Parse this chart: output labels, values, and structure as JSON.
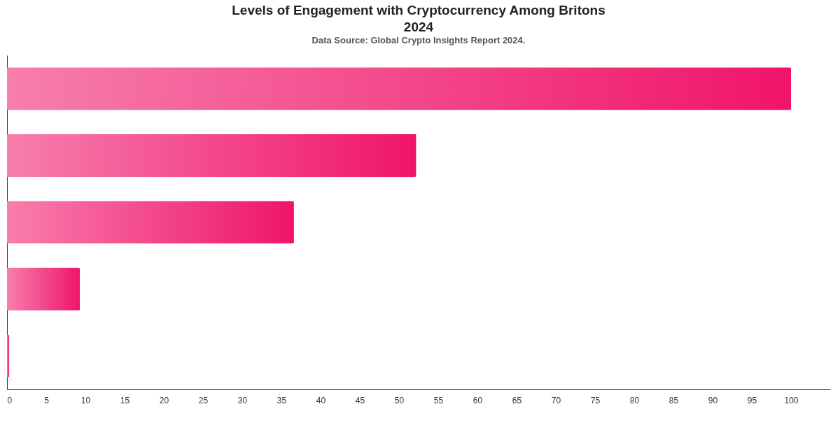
{
  "chart_data": {
    "type": "bar",
    "orientation": "horizontal",
    "title": "Levels of Engagement with Cryptocurrency Among Britons\n2024",
    "annotations": [
      "Data Source: Global Crypto Insights Report 2024."
    ],
    "categories": [
      null,
      null,
      null,
      null,
      null
    ],
    "values": [
      100,
      52.2,
      36.6,
      9.3,
      0.3
    ],
    "color": "#f0146a",
    "xlim": [
      0,
      105
    ],
    "xticks": [
      0,
      5,
      10,
      15,
      20,
      25,
      30,
      35,
      40,
      45,
      50,
      55,
      60,
      65,
      70,
      75,
      80,
      85,
      90,
      95,
      100
    ],
    "grid": false
  }
}
